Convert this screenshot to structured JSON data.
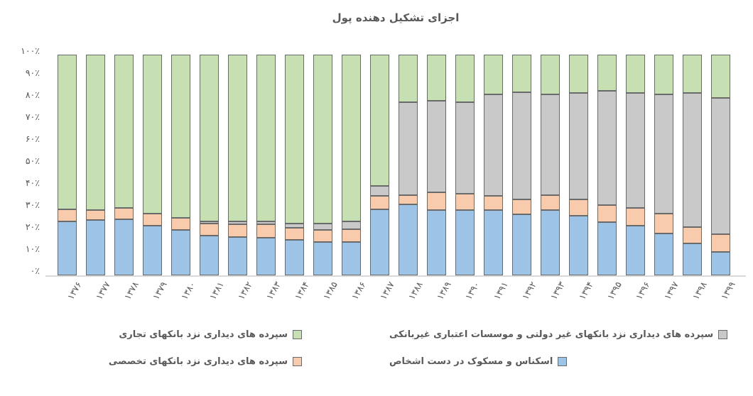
{
  "chart_data": {
    "type": "bar",
    "stacked": true,
    "percent_stacked": true,
    "title": "اجزای تشکیل دهنده پول",
    "xlabel": "",
    "ylabel": "",
    "ylim": [
      0,
      100
    ],
    "grid": false,
    "legend_position": "bottom",
    "y_ticks": [
      "۱۰۰٪",
      "۹۰٪",
      "۸۰٪",
      "۷۰٪",
      "۶۰٪",
      "۵۰٪",
      "۴۰٪",
      "۳۰٪",
      "۲۰٪",
      "۱۰٪",
      "۰٪"
    ],
    "categories": [
      "۱۳۷۶",
      "۱۳۷۷",
      "۱۳۷۸",
      "۱۳۷۹",
      "۱۳۸۰",
      "۱۳۸۱",
      "۱۳۸۲",
      "۱۳۸۳",
      "۱۳۸۴",
      "۱۳۸۵",
      "۱۳۸۶",
      "۱۳۸۷",
      "۱۳۸۸",
      "۱۳۸۹",
      "۱۳۹۰",
      "۱۳۹۱",
      "۱۳۹۲",
      "۱۳۹۳",
      "۱۳۹۴",
      "۱۳۹۵",
      "۱۳۹۶",
      "۱۳۹۷",
      "۱۳۹۸",
      "۱۳۹۹"
    ],
    "series": [
      {
        "name": "اسکناس و مسکوک در دست اشخاص",
        "color": "#9dc3e6",
        "values": [
          24.5,
          25,
          25.5,
          22.5,
          20.5,
          18,
          17.5,
          17,
          16,
          15,
          15,
          30,
          32,
          29.5,
          29.5,
          29.5,
          27.5,
          29.5,
          27,
          24,
          22.5,
          19,
          14.5,
          10.5
        ]
      },
      {
        "name": "سپرده های دیداری نزد بانکهای تخصصی",
        "color": "#f8cbad",
        "values": [
          5.5,
          4.5,
          5,
          5.5,
          5.5,
          5.5,
          5.5,
          6,
          5.5,
          5.5,
          6,
          6,
          4.5,
          8,
          7.5,
          6.5,
          7,
          7,
          7.5,
          8,
          8,
          9,
          7.5,
          8
        ]
      },
      {
        "name": "سپرده های دیداری نزد بانکهای غیر دولتی و موسسات اعتباری غیربانکی",
        "color": "#c9c9c9",
        "values": [
          0,
          0,
          0,
          0,
          0,
          1,
          1.5,
          1.5,
          2,
          3,
          3.5,
          4.5,
          42,
          41.5,
          41.5,
          46,
          48.5,
          45.5,
          48,
          51.5,
          52,
          54,
          60.5,
          62
        ]
      },
      {
        "name": "سپرده های دیداری نزد بانکهای تجاری",
        "color": "#c6e0b4",
        "values": [
          70,
          70.5,
          69.5,
          72,
          74,
          75.5,
          75.5,
          75.5,
          76.5,
          76.5,
          75.5,
          59.5,
          21.5,
          21,
          21.5,
          18,
          17,
          18,
          17.5,
          16.5,
          17.5,
          18,
          17.5,
          19.5
        ]
      }
    ]
  },
  "colors": {
    "segment_border": "#6a6a6a",
    "axis_line": "#d9d9d9",
    "text": "#595959"
  }
}
